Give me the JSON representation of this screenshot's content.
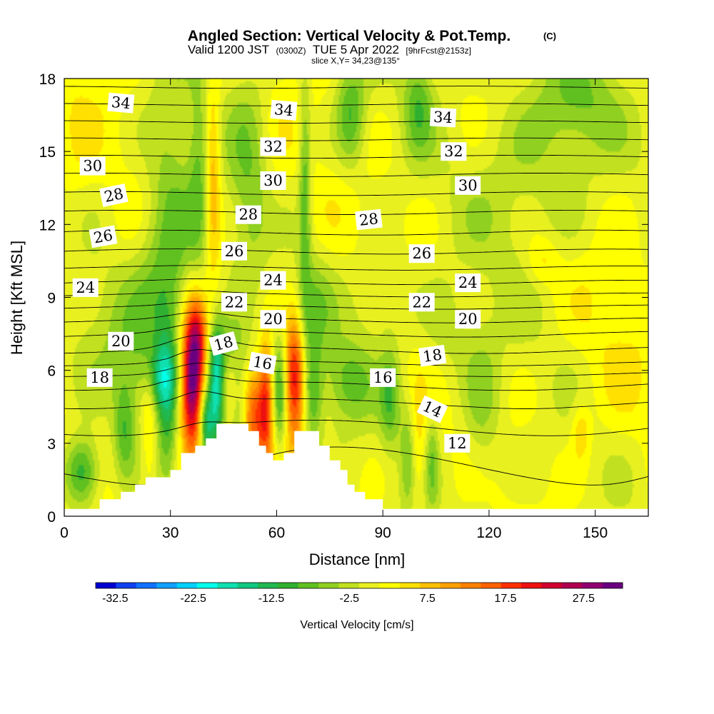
{
  "chart_data": {
    "type": "heatmap",
    "title": "Angled Section: Vertical Velocity & Pot.Temp.",
    "title_mark": "(C)",
    "subtitle": {
      "valid": "Valid 1200 JST",
      "utc": "(0300Z)",
      "date": "TUE 5 Apr 2022",
      "forecast": "[9hrFcst@2153z]"
    },
    "slice": "slice X,Y= 34,23@135°",
    "xlabel": "Distance [nm]",
    "ylabel": "Height [Kft MSL]",
    "xlim": [
      0,
      165
    ],
    "ylim": [
      0,
      18
    ],
    "x_ticks": [
      0,
      30,
      60,
      90,
      120,
      150
    ],
    "y_ticks": [
      0,
      3,
      6,
      9,
      12,
      15,
      18
    ],
    "colorbar": {
      "label": "Vertical Velocity [cm/s]",
      "min": -35,
      "max": 32.5,
      "tick_labels": [
        "-32.5",
        "-22.5",
        "-12.5",
        "-2.5",
        "7.5",
        "17.5",
        "27.5"
      ],
      "tick_values": [
        -32.5,
        -22.5,
        -12.5,
        -2.5,
        7.5,
        17.5,
        27.5
      ],
      "colors": [
        "#0000d0",
        "#1040f0",
        "#1070ff",
        "#10a0ff",
        "#00d0ff",
        "#00ffe8",
        "#10e0b0",
        "#10c880",
        "#20b850",
        "#30b030",
        "#60c020",
        "#90d020",
        "#c0e020",
        "#e8f020",
        "#ffff00",
        "#ffe000",
        "#ffc000",
        "#ffa000",
        "#ff8000",
        "#ff6000",
        "#ff3000",
        "#ee1010",
        "#d00030",
        "#b00050",
        "#900070",
        "#6a0080"
      ]
    },
    "terrain_profile": [
      [
        0,
        0.3
      ],
      [
        10,
        0.3
      ],
      [
        10,
        0.7
      ],
      [
        16,
        0.7
      ],
      [
        16,
        1.0
      ],
      [
        20,
        1.0
      ],
      [
        20,
        1.3
      ],
      [
        23,
        1.3
      ],
      [
        23,
        1.6
      ],
      [
        30,
        1.6
      ],
      [
        30,
        1.9
      ],
      [
        33,
        1.9
      ],
      [
        33,
        2.6
      ],
      [
        37,
        2.6
      ],
      [
        37,
        2.9
      ],
      [
        40,
        2.9
      ],
      [
        40,
        3.2
      ],
      [
        43,
        3.2
      ],
      [
        43,
        3.8
      ],
      [
        52,
        3.8
      ],
      [
        52,
        3.5
      ],
      [
        55,
        3.5
      ],
      [
        55,
        2.9
      ],
      [
        57,
        2.9
      ],
      [
        57,
        2.6
      ],
      [
        59,
        2.6
      ],
      [
        59,
        2.3
      ],
      [
        62,
        2.3
      ],
      [
        62,
        2.6
      ],
      [
        65,
        2.6
      ],
      [
        65,
        3.5
      ],
      [
        72,
        3.5
      ],
      [
        72,
        2.9
      ],
      [
        75,
        2.9
      ],
      [
        75,
        2.3
      ],
      [
        78,
        2.3
      ],
      [
        78,
        1.9
      ],
      [
        80,
        1.9
      ],
      [
        80,
        1.3
      ],
      [
        82,
        1.3
      ],
      [
        82,
        1.0
      ],
      [
        85,
        1.0
      ],
      [
        85,
        0.7
      ],
      [
        90,
        0.7
      ],
      [
        90,
        0.3
      ],
      [
        165,
        0.3
      ]
    ],
    "velocity_features": [
      {
        "x": 36,
        "y": 5.5,
        "sx": 2.2,
        "sy": 2.0,
        "value": 32
      },
      {
        "x": 38,
        "y": 7.3,
        "sx": 2.0,
        "sy": 1.2,
        "value": 14
      },
      {
        "x": 43,
        "y": 5.2,
        "sx": 1.6,
        "sy": 1.6,
        "value": -20
      },
      {
        "x": 40,
        "y": 3.8,
        "sx": 1.4,
        "sy": 1.0,
        "value": -15
      },
      {
        "x": 50,
        "y": 4.3,
        "sx": 2.0,
        "sy": 1.5,
        "value": -10
      },
      {
        "x": 53,
        "y": 4.0,
        "sx": 2.4,
        "sy": 1.3,
        "value": 15
      },
      {
        "x": 57,
        "y": 4.6,
        "sx": 1.5,
        "sy": 1.8,
        "value": 16
      },
      {
        "x": 61,
        "y": 5.0,
        "sx": 1.6,
        "sy": 1.8,
        "value": -12
      },
      {
        "x": 65,
        "y": 5.7,
        "sx": 2.2,
        "sy": 1.8,
        "value": 22
      },
      {
        "x": 70,
        "y": 5.0,
        "sx": 2.0,
        "sy": 1.5,
        "value": -10
      },
      {
        "x": 29,
        "y": 4.5,
        "sx": 2.0,
        "sy": 2.5,
        "value": -9
      },
      {
        "x": 24,
        "y": 4.0,
        "sx": 1.5,
        "sy": 1.8,
        "value": 6
      },
      {
        "x": 17,
        "y": 3.6,
        "sx": 2.2,
        "sy": 1.5,
        "value": -9
      },
      {
        "x": 5,
        "y": 1.8,
        "sx": 3.5,
        "sy": 1.0,
        "value": -14
      },
      {
        "x": 27,
        "y": 5.7,
        "sx": 3.0,
        "sy": 0.9,
        "value": -9
      },
      {
        "x": 45,
        "y": 7.0,
        "sx": 5.0,
        "sy": 1.0,
        "value": -6
      },
      {
        "x": 80,
        "y": 5.5,
        "sx": 5.0,
        "sy": 1.2,
        "value": -8
      },
      {
        "x": 92,
        "y": 4.8,
        "sx": 2.0,
        "sy": 1.5,
        "value": -8
      },
      {
        "x": 97,
        "y": 2.5,
        "sx": 1.5,
        "sy": 1.5,
        "value": -6
      },
      {
        "x": 100,
        "y": 2.5,
        "sx": 1.5,
        "sy": 1.8,
        "value": 5
      },
      {
        "x": 104,
        "y": 2.3,
        "sx": 1.3,
        "sy": 1.5,
        "value": -6
      },
      {
        "x": 118,
        "y": 4.5,
        "sx": 4.0,
        "sy": 2.5,
        "value": -6
      },
      {
        "x": 146,
        "y": 3.5,
        "sx": 1.8,
        "sy": 0.8,
        "value": 6
      },
      {
        "x": 135,
        "y": 10.5,
        "sx": 3.5,
        "sy": 0.8,
        "value": 5
      },
      {
        "x": 30,
        "y": 10.0,
        "sx": 6.0,
        "sy": 2.5,
        "value": -8
      },
      {
        "x": 42,
        "y": 14.0,
        "sx": 1.5,
        "sy": 3.0,
        "value": 9
      },
      {
        "x": 38,
        "y": 14.0,
        "sx": 2.0,
        "sy": 3.0,
        "value": -6
      },
      {
        "x": 30,
        "y": 14.5,
        "sx": 5.0,
        "sy": 3.0,
        "value": -5
      },
      {
        "x": 52,
        "y": 14.0,
        "sx": 4.0,
        "sy": 3.5,
        "value": -6
      },
      {
        "x": 60,
        "y": 13.0,
        "sx": 3.0,
        "sy": 2.0,
        "value": 1.5
      },
      {
        "x": 68,
        "y": 13.5,
        "sx": 1.2,
        "sy": 3.5,
        "value": -9
      },
      {
        "x": 81,
        "y": 16.5,
        "sx": 3.0,
        "sy": 1.5,
        "value": -10
      },
      {
        "x": 100,
        "y": 17.0,
        "sx": 3.0,
        "sy": 1.5,
        "value": -8
      },
      {
        "x": 132,
        "y": 14.0,
        "sx": 12.0,
        "sy": 3.0,
        "value": -5
      },
      {
        "x": 145,
        "y": 17.0,
        "sx": 8.0,
        "sy": 1.5,
        "value": -6
      },
      {
        "x": 90,
        "y": 9.0,
        "sx": 6.0,
        "sy": 1.5,
        "value": -4.5
      },
      {
        "x": 108,
        "y": 7.5,
        "sx": 5.0,
        "sy": 1.5,
        "value": -4
      },
      {
        "x": 155,
        "y": 7.5,
        "sx": 8.0,
        "sy": 3.0,
        "value": 2
      },
      {
        "x": 20,
        "y": 7.0,
        "sx": 8.0,
        "sy": 2.0,
        "value": -5
      },
      {
        "x": 3,
        "y": 14.0,
        "sx": 4.0,
        "sy": 3.5,
        "value": 2
      },
      {
        "x": 5,
        "y": 7.0,
        "sx": 5.0,
        "sy": 2.5,
        "value": -2
      },
      {
        "x": 70,
        "y": 8.5,
        "sx": 4.0,
        "sy": 1.5,
        "value": -6
      }
    ],
    "theta_levels": [
      12,
      13,
      14,
      15,
      16,
      17,
      18,
      19,
      20,
      21,
      22,
      23,
      24,
      25,
      26,
      27,
      28,
      29,
      30,
      31,
      32,
      33,
      34,
      35
    ],
    "theta_profile": [
      [
        0.3,
        11.2
      ],
      [
        1.5,
        11.7
      ],
      [
        3,
        12.4
      ],
      [
        4.5,
        13.8
      ],
      [
        5.5,
        15.2
      ],
      [
        6.5,
        17.5
      ],
      [
        7.5,
        19.0
      ],
      [
        8.5,
        20.8
      ],
      [
        9.5,
        22.8
      ],
      [
        10.5,
        24.5
      ],
      [
        11.5,
        25.8
      ],
      [
        12.5,
        27.0
      ],
      [
        13.5,
        28.3
      ],
      [
        14.5,
        29.6
      ],
      [
        15.5,
        31.0
      ],
      [
        16.5,
        32.4
      ],
      [
        17.5,
        33.8
      ],
      [
        18.5,
        35.2
      ]
    ],
    "contour_labels": [
      {
        "x": 16,
        "y": 17.0,
        "text": "34",
        "angle": 5
      },
      {
        "x": 62,
        "y": 16.7,
        "text": "34",
        "angle": 5
      },
      {
        "x": 107,
        "y": 16.4,
        "text": "34",
        "angle": 3
      },
      {
        "x": 8,
        "y": 14.4,
        "text": "30",
        "angle": 0
      },
      {
        "x": 59,
        "y": 15.2,
        "text": "32",
        "angle": 0
      },
      {
        "x": 110,
        "y": 15.0,
        "text": "32",
        "angle": 0
      },
      {
        "x": 59,
        "y": 13.8,
        "text": "30",
        "angle": 0
      },
      {
        "x": 114,
        "y": 13.6,
        "text": "30",
        "angle": 0
      },
      {
        "x": 14,
        "y": 13.2,
        "text": "28",
        "angle": -12
      },
      {
        "x": 52,
        "y": 12.4,
        "text": "28",
        "angle": 0
      },
      {
        "x": 86,
        "y": 12.2,
        "text": "28",
        "angle": -6
      },
      {
        "x": 11,
        "y": 11.5,
        "text": "26",
        "angle": -10
      },
      {
        "x": 48,
        "y": 10.9,
        "text": "26",
        "angle": 0
      },
      {
        "x": 101,
        "y": 10.8,
        "text": "26",
        "angle": 0
      },
      {
        "x": 6,
        "y": 9.4,
        "text": "24",
        "angle": 0
      },
      {
        "x": 59,
        "y": 9.7,
        "text": "24",
        "angle": 0
      },
      {
        "x": 114,
        "y": 9.6,
        "text": "24",
        "angle": 0
      },
      {
        "x": 48,
        "y": 8.8,
        "text": "22",
        "angle": 0
      },
      {
        "x": 101,
        "y": 8.8,
        "text": "22",
        "angle": 0
      },
      {
        "x": 59,
        "y": 8.1,
        "text": "20",
        "angle": 0
      },
      {
        "x": 114,
        "y": 8.1,
        "text": "20",
        "angle": 0
      },
      {
        "x": 16,
        "y": 7.2,
        "text": "20",
        "angle": 0
      },
      {
        "x": 45,
        "y": 7.1,
        "text": "18",
        "angle": -15
      },
      {
        "x": 104,
        "y": 6.6,
        "text": "18",
        "angle": -8
      },
      {
        "x": 10,
        "y": 5.7,
        "text": "18",
        "angle": 0
      },
      {
        "x": 56,
        "y": 6.3,
        "text": "16",
        "angle": 10
      },
      {
        "x": 90,
        "y": 5.7,
        "text": "16",
        "angle": 0
      },
      {
        "x": 104,
        "y": 4.4,
        "text": "14",
        "angle": 25
      },
      {
        "x": 111,
        "y": 3.0,
        "text": "12",
        "angle": 0
      }
    ]
  }
}
